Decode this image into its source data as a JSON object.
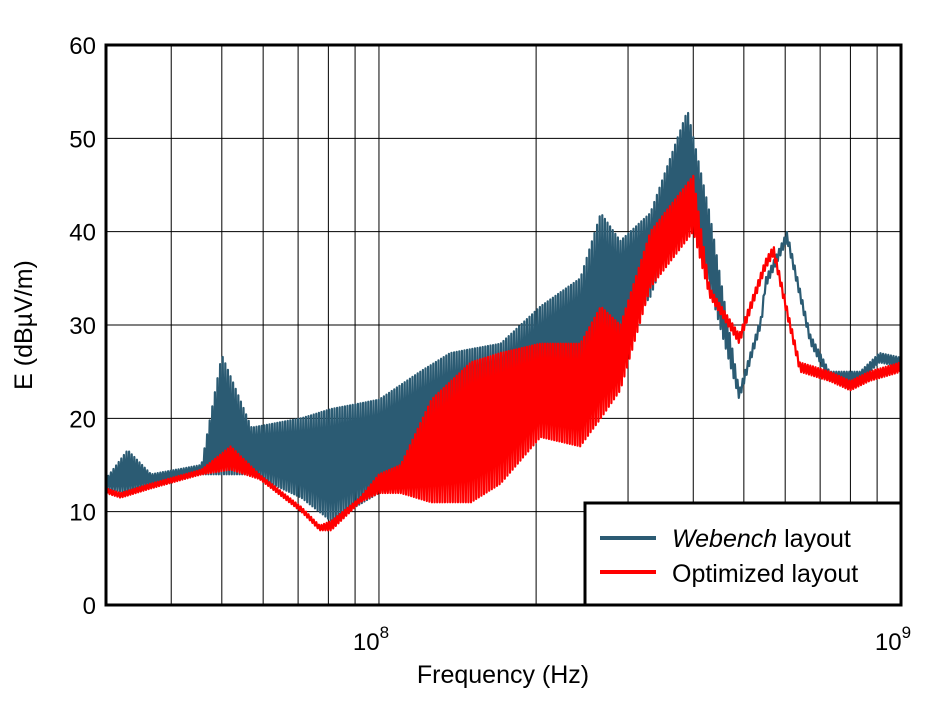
{
  "chart_data": {
    "type": "line",
    "title": "",
    "xlabel": "Frequency (Hz)",
    "ylabel": "E (dBµV/m)",
    "x_scale": "log",
    "xlim": [
      30000000,
      1000000000
    ],
    "ylim": [
      0,
      60
    ],
    "grid": true,
    "x_tick_labels": [
      {
        "value": 100000000,
        "base": "10",
        "exp": "8"
      },
      {
        "value": 1000000000,
        "base": "10",
        "exp": "9"
      }
    ],
    "y_ticks": [
      "0",
      "10",
      "20",
      "30",
      "40",
      "50",
      "60"
    ],
    "legend_position": "bottom-right",
    "series": [
      {
        "name_italic": "Webench",
        "name_rest": " layout",
        "color": "#2b5b73",
        "x": [
          30000000,
          33000000,
          36600000,
          45700000,
          50000000,
          57000000,
          71000000,
          81000000,
          100000000,
          120000000,
          137000000,
          171000000,
          204000000,
          243000000,
          266000000,
          290000000,
          331000000,
          390000000,
          430000000,
          490000000,
          540000000,
          550000000,
          605000000,
          670000000,
          730000000,
          835000000,
          910000000,
          1000000000
        ],
        "y_min": [
          12.5,
          12,
          13,
          14,
          14,
          14,
          11.5,
          9,
          12,
          13,
          14,
          17,
          20,
          23,
          25,
          29,
          33,
          44,
          34,
          22,
          30,
          34,
          39,
          28,
          24,
          24,
          26,
          25.5
        ],
        "y_max": [
          13.5,
          16.6,
          14,
          15,
          26.8,
          19,
          20,
          21,
          22,
          25,
          27,
          28,
          32,
          35,
          42,
          39,
          42,
          53,
          42,
          23,
          31,
          35,
          40,
          29,
          25,
          25,
          27,
          26.5
        ]
      },
      {
        "name": "Optimized layout",
        "color": "#ff0000",
        "x": [
          30000000,
          32000000,
          36600000,
          45700000,
          52000000,
          59000000,
          71000000,
          77000000,
          81000000,
          92000000,
          100000000,
          110000000,
          126000000,
          150000000,
          171000000,
          204000000,
          243000000,
          266000000,
          290000000,
          331000000,
          400000000,
          430000000,
          490000000,
          550000000,
          570000000,
          610000000,
          640000000,
          730000000,
          800000000,
          870000000,
          1000000000
        ],
        "y_min": [
          12,
          11.5,
          12.5,
          14,
          14.5,
          13.5,
          10,
          8,
          8,
          11,
          12,
          12,
          11,
          11,
          13,
          18,
          17,
          20,
          23,
          34,
          40,
          33,
          28,
          36,
          37.5,
          30,
          25,
          24,
          23,
          24,
          25
        ],
        "y_max": [
          12.5,
          12,
          13,
          14.5,
          17,
          14,
          10.5,
          8.5,
          9,
          11.5,
          14,
          15,
          22,
          26,
          27,
          28,
          28,
          32,
          30,
          40,
          46,
          34,
          29,
          37,
          38.5,
          31,
          26,
          25,
          24,
          25,
          26
        ]
      }
    ]
  }
}
